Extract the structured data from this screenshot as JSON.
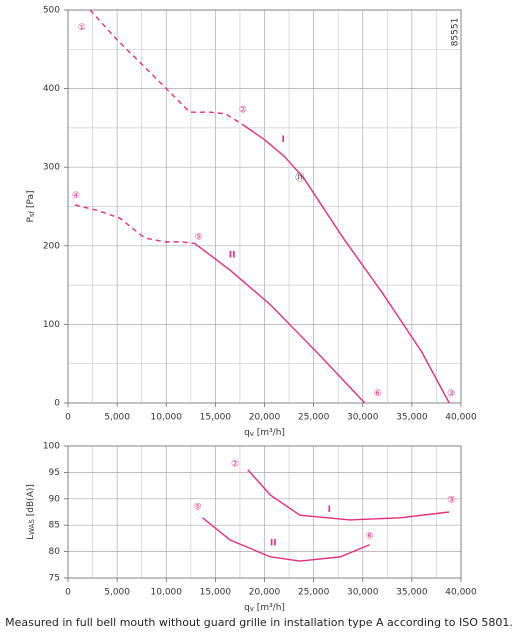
{
  "chart_data": [
    {
      "type": "line",
      "id_label": "85551",
      "xlim": [
        0,
        40000
      ],
      "ylim": [
        0,
        500
      ],
      "xticks": [
        0,
        {
          "value": 5000,
          "label": "5,000"
        },
        {
          "value": 10000,
          "label": "10,000"
        },
        {
          "value": 15000,
          "label": "15,000"
        },
        {
          "value": 20000,
          "label": "20,000"
        },
        {
          "value": 25000,
          "label": "25,000"
        },
        {
          "value": 30000,
          "label": "30,000"
        },
        {
          "value": 35000,
          "label": "35,000"
        },
        {
          "value": 40000,
          "label": "40,000"
        }
      ],
      "yticks": [
        0,
        100,
        200,
        300,
        400,
        500
      ],
      "minor_xticks": [
        2500,
        7500,
        12500,
        17500,
        22500,
        27500,
        32500,
        37500
      ],
      "minor_yticks": [
        50,
        150,
        250,
        350,
        450
      ],
      "xlabel": {
        "main": "q",
        "sub": "v",
        "unit": " [m³/h]"
      },
      "ylabel": {
        "main": "P",
        "sub": "sf",
        "unit": " [Pa]"
      },
      "series": [
        {
          "name": "I",
          "color": "#e0307f",
          "label_x": 21900,
          "label_y": 335,
          "segments": [
            {
              "style": "dashed",
              "x": [
                2240,
                5000,
                8000,
                11200,
                12400,
                14450,
                16000,
                17800
              ],
              "values": [
                500,
                462,
                425,
                385,
                370,
                370,
                368,
                354
              ]
            },
            {
              "style": "solid",
              "x": [
                17800,
                20000,
                22000,
                24000,
                28000,
                32000,
                36000,
                38800
              ],
              "values": [
                354,
                335,
                314,
                286,
                210,
                140,
                65,
                0
              ]
            }
          ]
        },
        {
          "name": "II",
          "color": "#e0307f",
          "label_x": 16700,
          "label_y": 188,
          "segments": [
            {
              "style": "dashed",
              "x": [
                700,
                3000,
                5300,
                7800,
                9900,
                11500,
                12900
              ],
              "values": [
                252,
                245,
                235,
                210,
                205,
                205,
                203
              ]
            },
            {
              "style": "solid",
              "x": [
                12900,
                16500,
                20600,
                25600,
                30200
              ],
              "values": [
                203,
                169,
                125,
                61,
                0
              ]
            }
          ]
        }
      ],
      "annotations": [
        {
          "text": "①",
          "x": 1400,
          "y": 478
        },
        {
          "text": "②",
          "x": 17800,
          "y": 373
        },
        {
          "text": "③",
          "x": 39000,
          "y": 12
        },
        {
          "text": "④",
          "x": 800,
          "y": 264
        },
        {
          "text": "⑤",
          "x": 13300,
          "y": 211
        },
        {
          "text": "⑥",
          "x": 31500,
          "y": 12
        },
        {
          "text": "⑪",
          "x": 23600,
          "y": 286
        }
      ]
    },
    {
      "type": "line",
      "xlim": [
        0,
        40000
      ],
      "ylim": [
        75,
        100
      ],
      "xticks": [
        0,
        {
          "value": 5000,
          "label": "5,000"
        },
        {
          "value": 10000,
          "label": "10,000"
        },
        {
          "value": 15000,
          "label": "15,000"
        },
        {
          "value": 20000,
          "label": "20,000"
        },
        {
          "value": 25000,
          "label": "25,000"
        },
        {
          "value": 30000,
          "label": "30,000"
        },
        {
          "value": 35000,
          "label": "35,000"
        },
        {
          "value": 40000,
          "label": "40,000"
        }
      ],
      "yticks": [
        75,
        80,
        85,
        90,
        95,
        100
      ],
      "minor_xticks": [
        2500,
        7500,
        12500,
        17500,
        22500,
        27500,
        32500,
        37500
      ],
      "minor_yticks": [],
      "xlabel": {
        "main": "q",
        "sub": "v",
        "unit": " [m³/h]"
      },
      "ylabel": {
        "main": "L",
        "sub": "WAS",
        "unit": " [dB(A)]"
      },
      "series": [
        {
          "name": "I",
          "color": "#e0307f",
          "label_x": 26600,
          "label_y": 88,
          "segments": [
            {
              "style": "solid",
              "x": [
                18300,
                20600,
                23600,
                28700,
                33800,
                38800
              ],
              "values": [
                95.5,
                90.7,
                86.9,
                86,
                86.4,
                87.5
              ]
            }
          ]
        },
        {
          "name": "II",
          "color": "#e0307f",
          "label_x": 20900,
          "label_y": 81.6,
          "segments": [
            {
              "style": "solid",
              "x": [
                13700,
                16500,
                20600,
                23600,
                27700,
                30700
              ],
              "values": [
                86.4,
                82.2,
                79,
                78.2,
                79,
                81.3
              ]
            }
          ]
        }
      ],
      "annotations": [
        {
          "text": "②",
          "x": 17000,
          "y": 96.6
        },
        {
          "text": "③",
          "x": 39000,
          "y": 89.8
        },
        {
          "text": "⑤",
          "x": 13200,
          "y": 88.4
        },
        {
          "text": "⑥",
          "x": 30700,
          "y": 83
        }
      ]
    }
  ],
  "caption": "Measured in full bell mouth without guard grille in installation type A according to ISO 5801."
}
